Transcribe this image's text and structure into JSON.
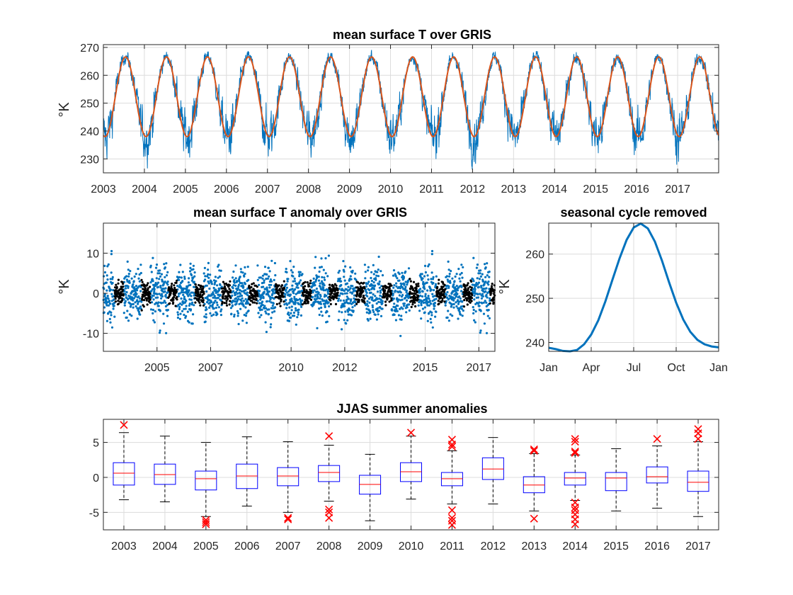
{
  "chart_data": [
    {
      "id": "p1",
      "type": "line",
      "title": "mean surface T over GRIS",
      "ylabel": "°K",
      "xlim": [
        2003.0,
        2018.0
      ],
      "ylim": [
        225,
        271
      ],
      "xticks": [
        2003,
        2004,
        2005,
        2006,
        2007,
        2008,
        2009,
        2010,
        2011,
        2012,
        2013,
        2014,
        2015,
        2016,
        2017
      ],
      "xtick_labels": [
        "2003",
        "2004",
        "2005",
        "2006",
        "2007",
        "2008",
        "2009",
        "2010",
        "2011",
        "2012",
        "2013",
        "2014",
        "2015",
        "2016",
        "2017"
      ],
      "yticks": [
        230,
        240,
        250,
        260,
        270
      ],
      "ytick_labels": [
        "230",
        "240",
        "250",
        "260",
        "270"
      ],
      "grid": true,
      "series": [
        {
          "color": "#0072bd",
          "style": "daily",
          "seasonal_mean": 252.3,
          "seasonal_amplitude": 14.3,
          "seasonal_peak_month_fraction": 0.54,
          "winter_noise": 6.0,
          "summer_noise": 1.5,
          "ymin": 226,
          "ymax": 271
        },
        {
          "color": "#d95319",
          "style": "fit",
          "seasonal_mean": 252.3,
          "seasonal_amplitude": 14.3,
          "seasonal_peak_month_fraction": 0.54
        }
      ]
    },
    {
      "id": "p2",
      "type": "scatter",
      "title": "mean surface T anomaly over GRIS",
      "ylabel": "°K",
      "xlim": [
        2003.0,
        2017.6
      ],
      "ylim": [
        -14.5,
        17.5
      ],
      "xticks": [
        2005,
        2007,
        2010,
        2012,
        2015,
        2017
      ],
      "xtick_labels": [
        "2005",
        "2007",
        "2010",
        "2012",
        "2015",
        "2017"
      ],
      "yticks": [
        -10,
        0,
        10
      ],
      "ytick_labels": [
        "-10",
        "0",
        "10"
      ],
      "grid": true,
      "series": [
        {
          "color": "#0072bd",
          "role": "all days",
          "spread": 4.7
        },
        {
          "color": "#000000",
          "role": "JJAS days",
          "spread": 2.0,
          "season_start_fraction": 0.42,
          "season_end_fraction": 0.75
        }
      ]
    },
    {
      "id": "p3",
      "type": "line",
      "title": "seasonal cycle removed",
      "ylabel": "°K",
      "xlim": [
        0,
        12
      ],
      "ylim": [
        238,
        267
      ],
      "xticks": [
        0,
        3,
        6,
        9,
        12
      ],
      "xtick_labels": [
        "Jan",
        "Apr",
        "Jul",
        "Oct",
        "Jan"
      ],
      "yticks": [
        240,
        250,
        260
      ],
      "ytick_labels": [
        "240",
        "250",
        "260"
      ],
      "grid": true,
      "series": [
        {
          "color": "#0072bd",
          "x": [
            0,
            0.5,
            1,
            1.5,
            2,
            2.5,
            3,
            3.5,
            4,
            4.5,
            5,
            5.5,
            6,
            6.5,
            7,
            7.5,
            8,
            8.5,
            9,
            9.5,
            10,
            10.5,
            11,
            11.5,
            12
          ],
          "y": [
            238.8,
            238.5,
            238.1,
            238.0,
            238.3,
            239.6,
            241.8,
            245.0,
            249.3,
            254.2,
            259.0,
            263.2,
            266.0,
            266.9,
            265.8,
            262.8,
            258.5,
            253.6,
            249.0,
            245.2,
            242.4,
            240.6,
            239.6,
            239.1,
            238.9
          ]
        }
      ]
    },
    {
      "id": "p4",
      "type": "box",
      "title": "JJAS summer anomalies",
      "ylabel": "",
      "ylim": [
        -7.5,
        8.3
      ],
      "yticks": [
        -5,
        0,
        5
      ],
      "ytick_labels": [
        "-5",
        "0",
        "5"
      ],
      "categories": [
        "2003",
        "2004",
        "2005",
        "2006",
        "2007",
        "2008",
        "2009",
        "2010",
        "2011",
        "2012",
        "2013",
        "2014",
        "2015",
        "2016",
        "2017"
      ],
      "grid": true,
      "box_color": "#0000ff",
      "median_color": "#ff0000",
      "whisker_color": "#000000",
      "outlier_color": "#ff0000",
      "boxes": [
        {
          "q1": -1.1,
          "median": 0.6,
          "q3": 2.1,
          "low": -3.2,
          "high": 6.4,
          "outliers": [
            7.5
          ]
        },
        {
          "q1": -1.0,
          "median": 0.4,
          "q3": 1.9,
          "low": -3.5,
          "high": 5.9,
          "outliers": []
        },
        {
          "q1": -1.8,
          "median": -0.2,
          "q3": 0.9,
          "low": -5.6,
          "high": 5.0,
          "outliers": [
            -6.1,
            -6.4,
            -6.7
          ]
        },
        {
          "q1": -1.6,
          "median": 0.2,
          "q3": 1.9,
          "low": -4.1,
          "high": 5.8,
          "outliers": []
        },
        {
          "q1": -1.2,
          "median": 0.2,
          "q3": 1.4,
          "low": -5.0,
          "high": 5.1,
          "outliers": [
            -5.8,
            -6.0
          ]
        },
        {
          "q1": -0.6,
          "median": 0.7,
          "q3": 1.7,
          "low": -3.4,
          "high": 4.6,
          "outliers": [
            5.9,
            -4.6,
            -5.0,
            -5.8
          ]
        },
        {
          "q1": -2.4,
          "median": -1.0,
          "q3": 0.3,
          "low": -6.2,
          "high": 3.3,
          "outliers": []
        },
        {
          "q1": -0.6,
          "median": 0.8,
          "q3": 2.1,
          "low": -3.1,
          "high": 5.9,
          "outliers": [
            6.4
          ]
        },
        {
          "q1": -1.2,
          "median": -0.2,
          "q3": 0.7,
          "low": -3.8,
          "high": 3.8,
          "outliers": [
            5.4,
            4.7,
            4.4,
            -4.7,
            -5.8,
            -6.2,
            -6.8
          ]
        },
        {
          "q1": -0.3,
          "median": 1.2,
          "q3": 2.8,
          "low": -3.8,
          "high": 5.7,
          "outliers": []
        },
        {
          "q1": -2.2,
          "median": -1.1,
          "q3": 0.1,
          "low": -4.8,
          "high": 3.4,
          "outliers": [
            3.8,
            4.0,
            -5.9
          ]
        },
        {
          "q1": -1.1,
          "median": -0.1,
          "q3": 0.7,
          "low": -3.3,
          "high": 3.2,
          "outliers": [
            5.5,
            5.1,
            3.7,
            3.5,
            -3.6,
            -4.3,
            -4.7,
            -5.3,
            -6.0,
            -6.7
          ]
        },
        {
          "q1": -1.9,
          "median": -0.1,
          "q3": 0.7,
          "low": -4.8,
          "high": 4.1,
          "outliers": []
        },
        {
          "q1": -0.8,
          "median": 0.1,
          "q3": 1.5,
          "low": -4.4,
          "high": 4.5,
          "outliers": [
            5.5
          ]
        },
        {
          "q1": -2.0,
          "median": -0.7,
          "q3": 0.9,
          "low": -5.6,
          "high": 5.1,
          "outliers": [
            5.5,
            6.3,
            6.9
          ]
        }
      ]
    }
  ]
}
